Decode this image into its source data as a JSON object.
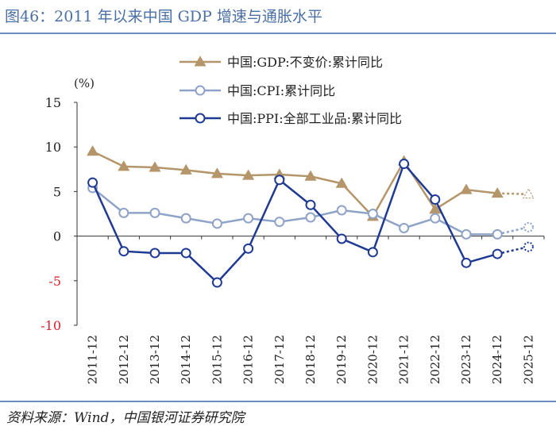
{
  "figure": {
    "title": "图46：2011 年以来中国 GDP 增速与通胀水平",
    "source": "资料来源：Wind，中国银河证券研究院"
  },
  "chart_data": {
    "type": "line",
    "title": "2011 年以来中国 GDP 增速与通胀水平",
    "unit_label": "(%)",
    "categories": [
      "2011-12",
      "2012-12",
      "2013-12",
      "2014-12",
      "2015-12",
      "2016-12",
      "2017-12",
      "2018-12",
      "2019-12",
      "2020-12",
      "2021-12",
      "2022-12",
      "2023-12",
      "2024-12",
      "2025-12"
    ],
    "ylim": [
      -10,
      15
    ],
    "yticks": [
      15,
      10,
      5,
      0,
      -5,
      -10
    ],
    "legend_position": "top-right",
    "series": [
      {
        "name": "中国:GDP:不变价:累计同比",
        "color": "#b5956a",
        "marker": "triangle",
        "values": [
          9.5,
          7.8,
          7.7,
          7.4,
          7.0,
          6.8,
          6.9,
          6.7,
          5.9,
          2.2,
          8.4,
          3.0,
          5.2,
          4.8,
          4.7
        ],
        "forecast_from_index": 13
      },
      {
        "name": "中国:CPI:累计同比",
        "color": "#8fa3c8",
        "marker": "circle",
        "values": [
          5.4,
          2.6,
          2.6,
          2.0,
          1.4,
          2.0,
          1.6,
          2.1,
          2.9,
          2.5,
          0.9,
          2.0,
          0.2,
          0.2,
          1.0
        ],
        "forecast_from_index": 13
      },
      {
        "name": "中国:PPI:全部工业品:累计同比",
        "color": "#1f3a93",
        "marker": "circle",
        "values": [
          6.0,
          -1.7,
          -1.9,
          -1.9,
          -5.2,
          -1.4,
          6.3,
          3.5,
          -0.3,
          -1.8,
          8.1,
          4.1,
          -3.0,
          -2.0,
          -1.2
        ],
        "forecast_from_index": 13
      }
    ]
  }
}
